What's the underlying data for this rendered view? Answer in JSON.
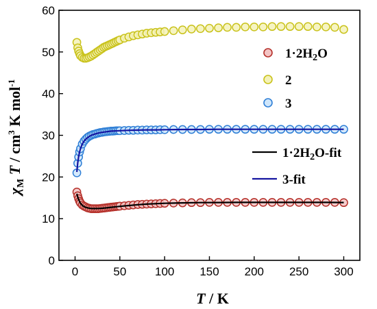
{
  "chart_data": {
    "type": "scatter",
    "xlabel": "T / K",
    "ylabel": "χM T / cm3 K mol-1",
    "xlim": [
      -18,
      318
    ],
    "ylim": [
      0,
      60
    ],
    "x_ticks": [
      0,
      50,
      100,
      150,
      200,
      250,
      300
    ],
    "y_ticks": [
      0,
      10,
      20,
      30,
      40,
      50,
      60
    ],
    "grid": false,
    "legend_placement": "right",
    "series": [
      {
        "name": "1·2H2O",
        "kind": "scatter",
        "color": "#b5302a",
        "fill": "#f3c4c4",
        "x": [
          2,
          3,
          4,
          5,
          6,
          8,
          10,
          12,
          14,
          16,
          18,
          20,
          22,
          24,
          26,
          28,
          30,
          32,
          34,
          36,
          38,
          40,
          42,
          44,
          46,
          48,
          50,
          55,
          60,
          65,
          70,
          75,
          80,
          85,
          90,
          95,
          100,
          110,
          120,
          130,
          140,
          150,
          160,
          170,
          180,
          190,
          200,
          210,
          220,
          230,
          240,
          250,
          260,
          270,
          280,
          290,
          300
        ],
        "y": [
          16.4,
          15.5,
          14.8,
          14.2,
          13.8,
          13.3,
          13.0,
          12.8,
          12.6,
          12.5,
          12.4,
          12.4,
          12.4,
          12.4,
          12.4,
          12.45,
          12.5,
          12.55,
          12.6,
          12.65,
          12.7,
          12.75,
          12.8,
          12.85,
          12.9,
          12.95,
          13.0,
          13.1,
          13.2,
          13.3,
          13.4,
          13.45,
          13.5,
          13.55,
          13.6,
          13.65,
          13.7,
          13.75,
          13.8,
          13.85,
          13.85,
          13.9,
          13.9,
          13.9,
          13.9,
          13.9,
          13.9,
          13.9,
          13.9,
          13.9,
          13.9,
          13.9,
          13.9,
          13.9,
          13.9,
          13.9,
          13.85
        ]
      },
      {
        "name": "2",
        "kind": "scatter",
        "color": "#c9c21b",
        "fill": "#f4f2b8",
        "x": [
          2,
          3,
          4,
          5,
          6,
          8,
          10,
          12,
          14,
          16,
          18,
          20,
          22,
          24,
          26,
          28,
          30,
          32,
          34,
          36,
          38,
          40,
          42,
          44,
          46,
          48,
          50,
          55,
          60,
          65,
          70,
          75,
          80,
          85,
          90,
          95,
          100,
          110,
          120,
          130,
          140,
          150,
          160,
          170,
          180,
          190,
          200,
          210,
          220,
          230,
          240,
          250,
          260,
          270,
          280,
          290,
          300
        ],
        "y": [
          52.3,
          51.0,
          50.2,
          49.6,
          49.1,
          48.7,
          48.5,
          48.5,
          48.6,
          48.8,
          49.0,
          49.3,
          49.6,
          49.9,
          50.2,
          50.5,
          50.8,
          51.1,
          51.3,
          51.5,
          51.7,
          51.9,
          52.1,
          52.3,
          52.5,
          52.7,
          52.9,
          53.3,
          53.6,
          53.9,
          54.1,
          54.3,
          54.5,
          54.6,
          54.7,
          54.8,
          54.9,
          55.1,
          55.3,
          55.5,
          55.6,
          55.7,
          55.8,
          55.9,
          55.9,
          56.0,
          56.0,
          56.0,
          56.1,
          56.1,
          56.1,
          56.1,
          56.1,
          56.0,
          56.0,
          55.9,
          55.4
        ]
      },
      {
        "name": "3",
        "kind": "scatter",
        "color": "#2f7fd6",
        "fill": "#cfe6fb",
        "x": [
          2,
          3,
          4,
          5,
          6,
          8,
          10,
          12,
          14,
          16,
          18,
          20,
          22,
          24,
          26,
          28,
          30,
          32,
          34,
          36,
          38,
          40,
          42,
          44,
          46,
          48,
          50,
          55,
          60,
          65,
          70,
          75,
          80,
          85,
          90,
          95,
          100,
          110,
          120,
          130,
          140,
          150,
          160,
          170,
          180,
          190,
          200,
          210,
          220,
          230,
          240,
          250,
          260,
          270,
          280,
          290,
          300
        ],
        "y": [
          21.0,
          23.3,
          24.8,
          26.0,
          26.8,
          27.9,
          28.6,
          29.1,
          29.5,
          29.8,
          30.0,
          30.2,
          30.3,
          30.45,
          30.55,
          30.65,
          30.7,
          30.8,
          30.85,
          30.9,
          30.95,
          31.0,
          31.0,
          31.05,
          31.1,
          31.1,
          31.1,
          31.15,
          31.2,
          31.2,
          31.25,
          31.25,
          31.3,
          31.3,
          31.3,
          31.35,
          31.35,
          31.4,
          31.4,
          31.4,
          31.4,
          31.45,
          31.45,
          31.45,
          31.45,
          31.45,
          31.45,
          31.45,
          31.45,
          31.45,
          31.45,
          31.45,
          31.45,
          31.45,
          31.45,
          31.45,
          31.45
        ]
      },
      {
        "name": "1·2H2O-fit",
        "kind": "line",
        "color": "#000000",
        "x": [
          2,
          3,
          4,
          5,
          6,
          8,
          10,
          12,
          15,
          18,
          22,
          26,
          30,
          35,
          40,
          50,
          60,
          70,
          80,
          90,
          100,
          120,
          140,
          160,
          180,
          200,
          220,
          240,
          260,
          280,
          300
        ],
        "y": [
          16.0,
          15.2,
          14.6,
          14.1,
          13.7,
          13.2,
          12.9,
          12.7,
          12.55,
          12.45,
          12.42,
          12.45,
          12.5,
          12.6,
          12.72,
          12.95,
          13.15,
          13.35,
          13.5,
          13.6,
          13.7,
          13.8,
          13.85,
          13.88,
          13.9,
          13.9,
          13.9,
          13.9,
          13.9,
          13.9,
          13.88
        ]
      },
      {
        "name": "3-fit",
        "kind": "line",
        "color": "#1414a0",
        "x": [
          2,
          3,
          4,
          5,
          6,
          8,
          10,
          12,
          15,
          18,
          22,
          26,
          30,
          35,
          40,
          50,
          60,
          70,
          80,
          90,
          100,
          120,
          140,
          160,
          180,
          200,
          220,
          240,
          260,
          280,
          300
        ],
        "y": [
          21.2,
          23.4,
          24.9,
          26.0,
          26.8,
          27.9,
          28.6,
          29.1,
          29.6,
          30.0,
          30.3,
          30.55,
          30.7,
          30.85,
          31.0,
          31.1,
          31.2,
          31.25,
          31.3,
          31.3,
          31.35,
          31.4,
          31.4,
          31.45,
          31.45,
          31.45,
          31.45,
          31.45,
          31.45,
          31.45,
          31.45
        ]
      }
    ]
  }
}
